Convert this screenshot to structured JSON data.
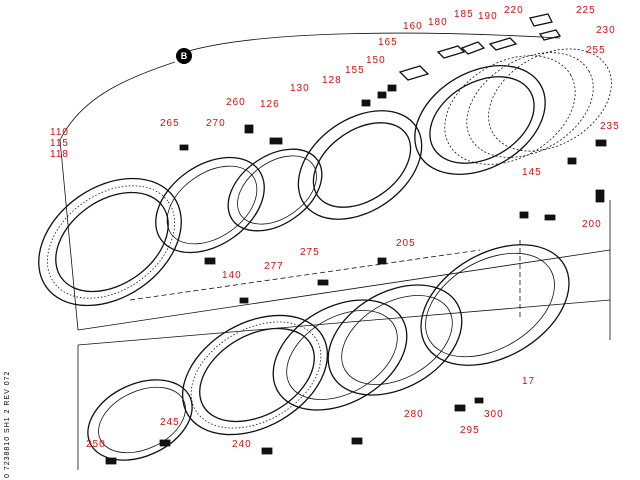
{
  "section_marker": "B",
  "vertical_code": "0 7238810  SH1  2 REV 072",
  "callouts": {
    "c110": "110",
    "c115": "115",
    "c118": "118",
    "c140": "140",
    "c265": "265",
    "c270": "270",
    "c260": "260",
    "c126": "126",
    "c130": "130",
    "c275": "275",
    "c277": "277",
    "c128": "128",
    "c155": "155",
    "c150": "150",
    "c165": "165",
    "c160": "160",
    "c180": "180",
    "c185": "185",
    "c190": "190",
    "c220": "220",
    "c225": "225",
    "c230": "230",
    "c255": "255",
    "c235": "235",
    "c145": "145",
    "c200": "200",
    "c205": "205",
    "c17": "17",
    "c280": "280",
    "c300": "300",
    "c295": "295",
    "c245": "245",
    "c250": "250",
    "c240": "240"
  }
}
